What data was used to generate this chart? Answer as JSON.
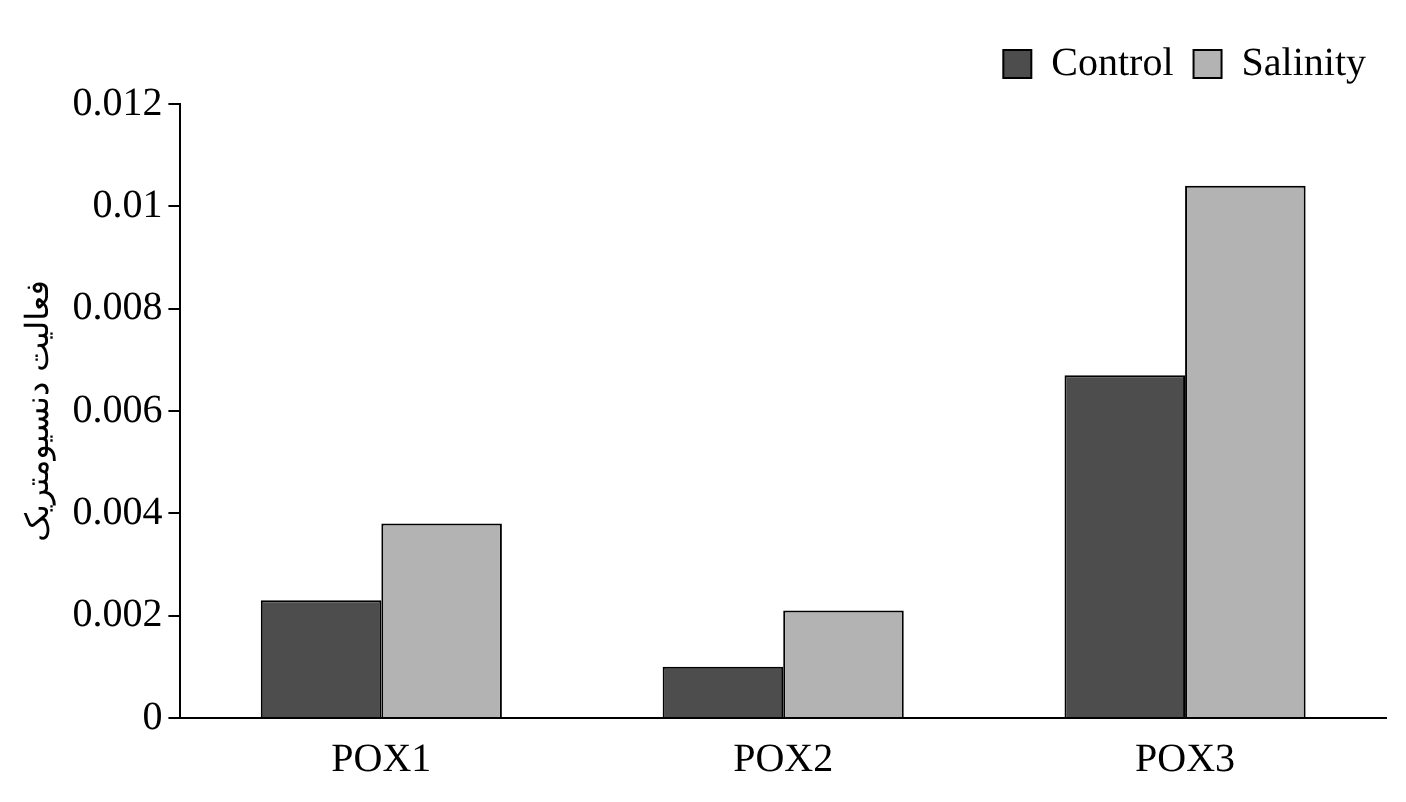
{
  "chart_data": {
    "type": "bar",
    "ylabel": "فعالیت دنسیومتریک",
    "categories": [
      "POX1",
      "POX2",
      "POX3"
    ],
    "series": [
      {
        "name": "Control",
        "color": "#4d4d4d",
        "values": [
          0.0023,
          0.001,
          0.0067
        ]
      },
      {
        "name": "Salinity",
        "color": "#b3b3b3",
        "values": [
          0.0038,
          0.0021,
          0.0104
        ]
      }
    ],
    "ylim": [
      0,
      0.012
    ],
    "yticks": [
      0,
      0.002,
      0.004,
      0.006,
      0.008,
      0.01,
      0.012
    ],
    "grid": false,
    "legend": "top right"
  }
}
